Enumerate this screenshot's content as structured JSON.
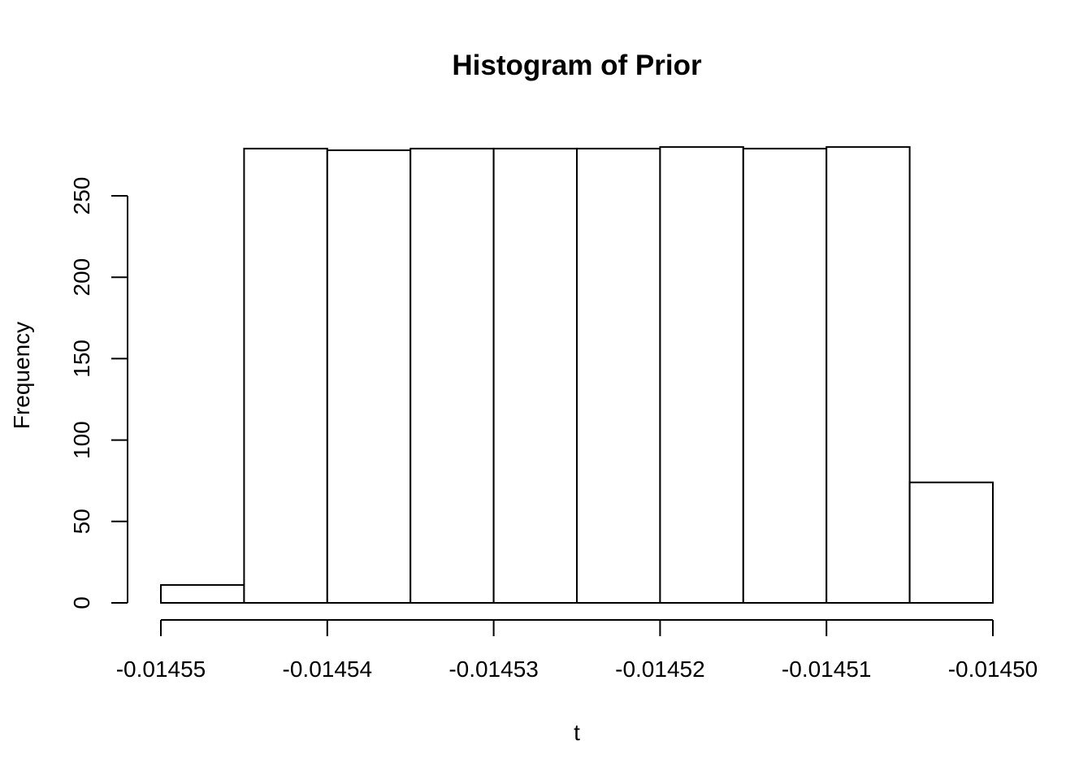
{
  "chart_data": {
    "type": "bar",
    "title": "Histogram of Prior",
    "xlabel": "t",
    "ylabel": "Frequency",
    "bin_edges": [
      -0.01455,
      -0.014545,
      -0.01454,
      -0.014535,
      -0.01453,
      -0.014525,
      -0.01452,
      -0.014515,
      -0.01451,
      -0.014505,
      -0.0145
    ],
    "values": [
      11,
      279,
      278,
      279,
      279,
      279,
      280,
      279,
      280,
      74
    ],
    "xlim": [
      -0.01455,
      -0.0145
    ],
    "ylim": [
      0,
      280
    ],
    "x_ticks": [
      -0.01455,
      -0.01454,
      -0.01453,
      -0.01452,
      -0.01451,
      -0.0145
    ],
    "x_tick_labels": [
      "-0.01455",
      "-0.01454",
      "-0.01453",
      "-0.01452",
      "-0.01451",
      "-0.01450"
    ],
    "y_ticks": [
      0,
      50,
      100,
      150,
      200,
      250
    ],
    "y_tick_labels": [
      "0",
      "50",
      "100",
      "150",
      "200",
      "250"
    ],
    "grid": false,
    "legend": "none",
    "colors": {
      "bar_fill": "#ffffff",
      "bar_stroke": "#000000"
    }
  }
}
